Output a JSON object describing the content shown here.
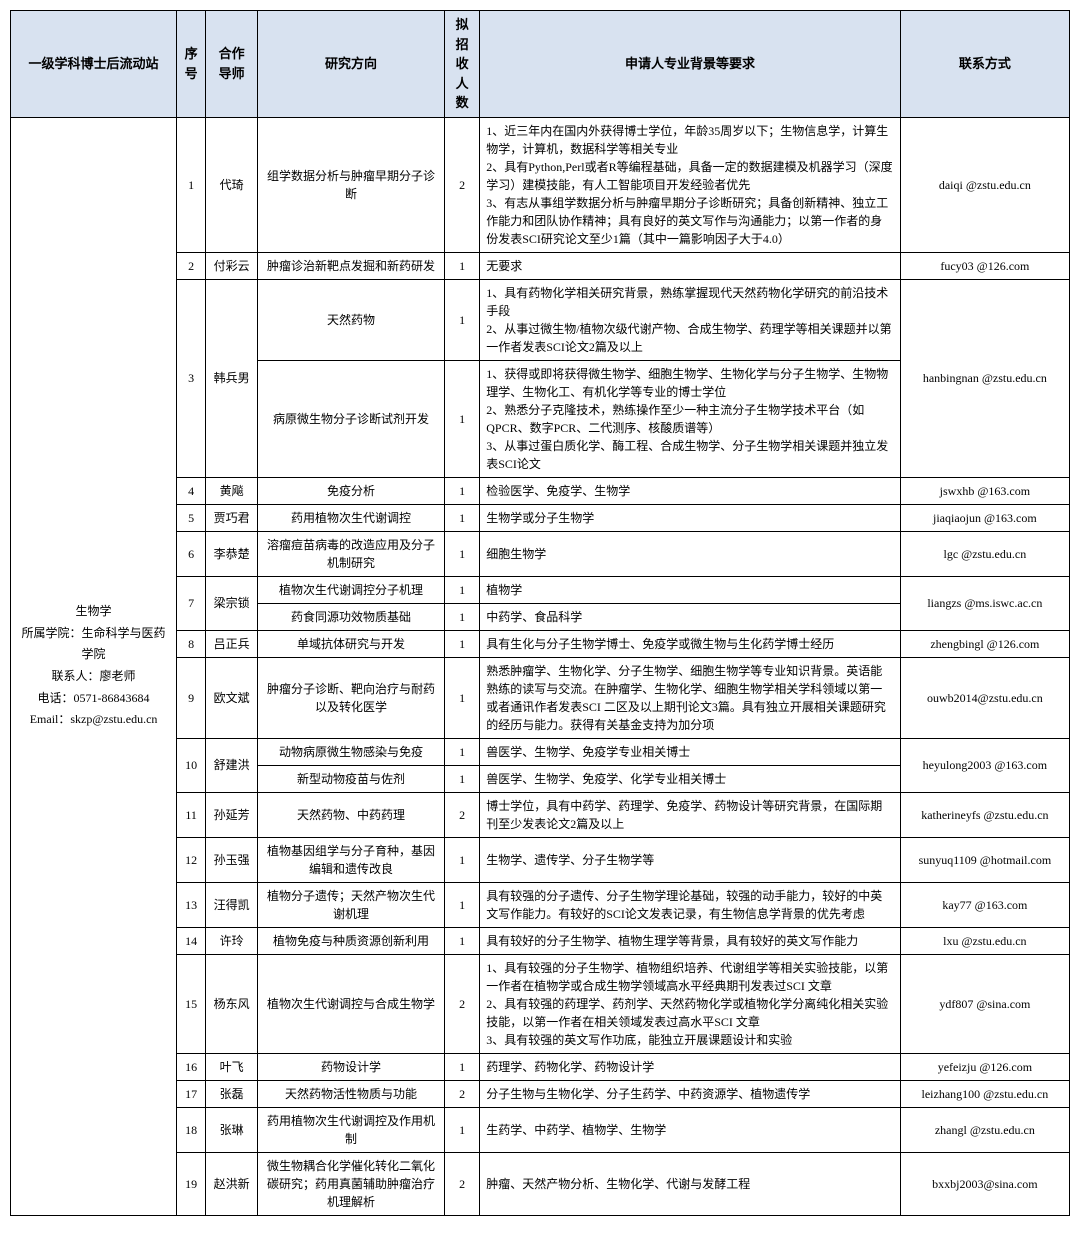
{
  "headers": {
    "station": "一级学科博士后流动站",
    "seq": "序号",
    "advisor": "合作导师",
    "direction": "研究方向",
    "count": "拟招收人数",
    "requirements": "申请人专业背景等要求",
    "contact": "联系方式"
  },
  "station": {
    "line1": "生物学",
    "line2": "所属学院：生命科学与医药学院",
    "line3": "联系人：廖老师",
    "line4": "电话：0571-86843684",
    "line5": "Email：skzp@zstu.edu.cn"
  },
  "rows": {
    "r1": {
      "seq": "1",
      "advisor": "代琦",
      "direction": "组学数据分析与肿瘤早期分子诊断",
      "count": "2",
      "req": "1、近三年内在国内外获得博士学位，年龄35周岁以下；生物信息学，计算生物学，计算机，数据科学等相关专业\n2、具有Python,Perl或者R等编程基础，具备一定的数据建模及机器学习（深度学习）建模技能，有人工智能项目开发经验者优先\n3、有志从事组学数据分析与肿瘤早期分子诊断研究；具备创新精神、独立工作能力和团队协作精神；具有良好的英文写作与沟通能力；以第一作者的身份发表SCI研究论文至少1篇（其中一篇影响因子大于4.0）",
      "contact": "daiqi @zstu.edu.cn"
    },
    "r2": {
      "seq": "2",
      "advisor": "付彩云",
      "direction": "肿瘤诊治新靶点发掘和新药研发",
      "count": "1",
      "req": "无要求",
      "contact": "fucy03 @126.com"
    },
    "r3a": {
      "seq": "3",
      "advisor": "韩兵男",
      "direction": "天然药物",
      "count": "1",
      "req": "1、具有药物化学相关研究背景，熟练掌握现代天然药物化学研究的前沿技术手段\n2、从事过微生物/植物次级代谢产物、合成生物学、药理学等相关课题并以第一作者发表SCI论文2篇及以上",
      "contact": "hanbingnan @zstu.edu.cn"
    },
    "r3b": {
      "direction": "病原微生物分子诊断试剂开发",
      "count": "1",
      "req": "1、获得或即将获得微生物学、细胞生物学、生物化学与分子生物学、生物物理学、生物化工、有机化学等专业的博士学位\n2、熟悉分子克隆技术，熟练操作至少一种主流分子生物学技术平台（如QPCR、数字PCR、二代测序、核酸质谱等）\n3、从事过蛋白质化学、酶工程、合成生物学、分子生物学相关课题并独立发表SCI论文"
    },
    "r4": {
      "seq": "4",
      "advisor": "黄飚",
      "direction": "免疫分析",
      "count": "1",
      "req": "检验医学、免疫学、生物学",
      "contact": "jswxhb @163.com"
    },
    "r5": {
      "seq": "5",
      "advisor": "贾巧君",
      "direction": "药用植物次生代谢调控",
      "count": "1",
      "req": "生物学或分子生物学",
      "contact": "jiaqiaojun @163.com"
    },
    "r6": {
      "seq": "6",
      "advisor": "李恭楚",
      "direction": "溶瘤痘苗病毒的改造应用及分子机制研究",
      "count": "1",
      "req": "细胞生物学",
      "contact": "lgc @zstu.edu.cn"
    },
    "r7a": {
      "seq": "7",
      "advisor": "梁宗锁",
      "direction": "植物次生代谢调控分子机理",
      "count": "1",
      "req": "植物学",
      "contact": "liangzs @ms.iswc.ac.cn"
    },
    "r7b": {
      "direction": "药食同源功效物质基础",
      "count": "1",
      "req": "中药学、食品科学"
    },
    "r8": {
      "seq": "8",
      "advisor": "吕正兵",
      "direction": "单域抗体研究与开发",
      "count": "1",
      "req": "具有生化与分子生物学博士、免疫学或微生物与生化药学博士经历",
      "contact": "zhengbingl @126.com"
    },
    "r9": {
      "seq": "9",
      "advisor": "欧文斌",
      "direction": "肿瘤分子诊断、靶向治疗与耐药以及转化医学",
      "count": "1",
      "req": "熟悉肿瘤学、生物化学、分子生物学、细胞生物学等专业知识背景。英语能熟练的读写与交流。在肿瘤学、生物化学、细胞生物学相关学科领域以第一或者通讯作者发表SCI 二区及以上期刊论文3篇。具有独立开展相关课题研究的经历与能力。获得有关基金支持为加分项",
      "contact": "ouwb2014@zstu.edu.cn"
    },
    "r10a": {
      "seq": "10",
      "advisor": "舒建洪",
      "direction": "动物病原微生物感染与免疫",
      "count": "1",
      "req": "兽医学、生物学、免疫学专业相关博士",
      "contact": "heyulong2003 @163.com"
    },
    "r10b": {
      "direction": "新型动物疫苗与佐剂",
      "count": "1",
      "req": "兽医学、生物学、免疫学、化学专业相关博士"
    },
    "r11": {
      "seq": "11",
      "advisor": "孙延芳",
      "direction": "天然药物、中药药理",
      "count": "2",
      "req": "博士学位，具有中药学、药理学、免疫学、药物设计等研究背景，在国际期刊至少发表论文2篇及以上",
      "contact": "katherineyfs @zstu.edu.cn"
    },
    "r12": {
      "seq": "12",
      "advisor": "孙玉强",
      "direction": "植物基因组学与分子育种，基因编辑和遗传改良",
      "count": "1",
      "req": "生物学、遗传学、分子生物学等",
      "contact": "sunyuq1109 @hotmail.com"
    },
    "r13": {
      "seq": "13",
      "advisor": "汪得凯",
      "direction": "植物分子遗传；天然产物次生代谢机理",
      "count": "1",
      "req": "具有较强的分子遗传、分子生物学理论基础，较强的动手能力，较好的中英文写作能力。有较好的SCI论文发表记录，有生物信息学背景的优先考虑",
      "contact": "kay77 @163.com"
    },
    "r14": {
      "seq": "14",
      "advisor": "许玲",
      "direction": "植物免疫与种质资源创新利用",
      "count": "1",
      "req": "具有较好的分子生物学、植物生理学等背景，具有较好的英文写作能力",
      "contact": "lxu @zstu.edu.cn"
    },
    "r15": {
      "seq": "15",
      "advisor": "杨东风",
      "direction": "植物次生代谢调控与合成生物学",
      "count": "2",
      "req": "1、具有较强的分子生物学、植物组织培养、代谢组学等相关实验技能，以第一作者在植物学或合成生物学领域高水平经典期刊发表过SCI 文章\n2、具有较强的药理学、药剂学、天然药物化学或植物化学分离纯化相关实验技能，以第一作者在相关领域发表过高水平SCI 文章\n3、具有较强的英文写作功底，能独立开展课题设计和实验",
      "contact": "ydf807 @sina.com"
    },
    "r16": {
      "seq": "16",
      "advisor": "叶飞",
      "direction": "药物设计学",
      "count": "1",
      "req": "药理学、药物化学、药物设计学",
      "contact": "yefeizju @126.com"
    },
    "r17": {
      "seq": "17",
      "advisor": "张磊",
      "direction": "天然药物活性物质与功能",
      "count": "2",
      "req": "分子生物与生物化学、分子生药学、中药资源学、植物遗传学",
      "contact": "leizhang100 @zstu.edu.cn"
    },
    "r18": {
      "seq": "18",
      "advisor": "张琳",
      "direction": "药用植物次生代谢调控及作用机制",
      "count": "1",
      "req": "生药学、中药学、植物学、生物学",
      "contact": "zhangl @zstu.edu.cn"
    },
    "r19": {
      "seq": "19",
      "advisor": "赵洪新",
      "direction": "微生物耦合化学催化转化二氧化碳研究；药用真菌辅助肿瘤治疗机理解析",
      "count": "2",
      "req": "肿瘤、天然产物分析、生物化学、代谢与发酵工程",
      "contact": "bxxbj2003@sina.com"
    }
  }
}
